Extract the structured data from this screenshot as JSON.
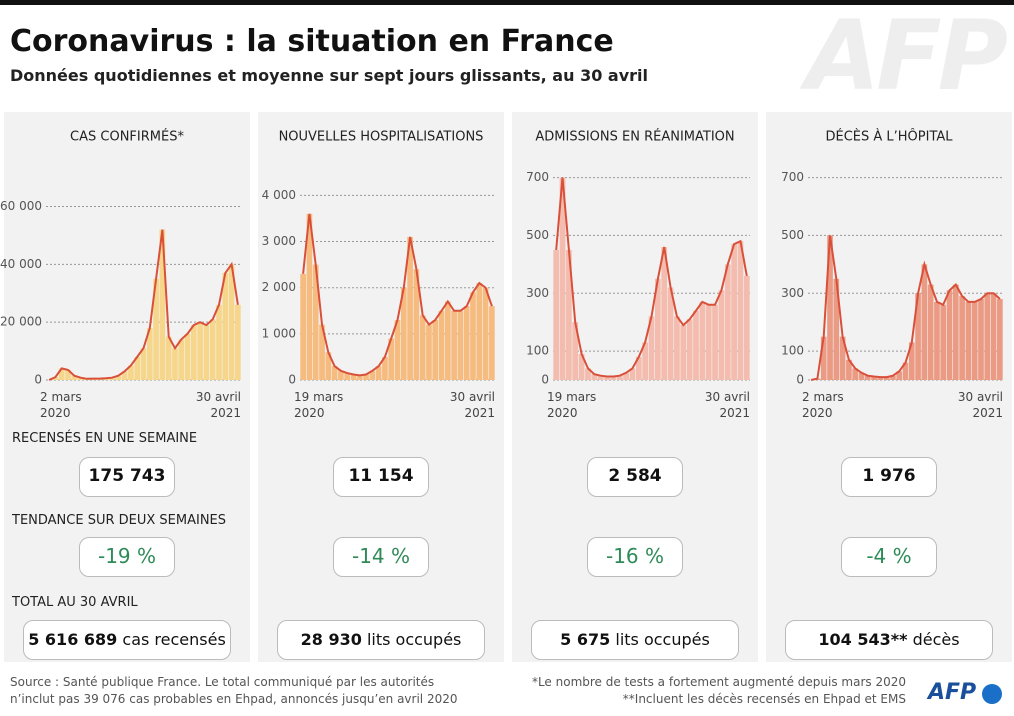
{
  "header": {
    "title": "Coronavirus : la situation en France",
    "subtitle": "Données quotidiennes et moyenne sur sept jours glissants, au 30 avril",
    "logo": "AFP"
  },
  "chart_data": [
    {
      "type": "bar",
      "title": "CAS CONFIRMÉS*",
      "color": "#f6d68a",
      "line_color": "#d9503a",
      "line": true,
      "categories": [
        "2 mars 2020",
        null,
        null,
        null,
        null,
        null,
        null,
        null,
        null,
        null,
        null,
        null,
        null,
        null,
        null,
        null,
        null,
        null,
        null,
        null,
        null,
        null,
        null,
        null,
        null,
        null,
        null,
        null,
        null,
        null,
        "30 avril 2021"
      ],
      "values": [
        0,
        1000,
        4000,
        3500,
        1500,
        800,
        400,
        500,
        500,
        600,
        800,
        1500,
        3000,
        5000,
        8000,
        11000,
        18000,
        35000,
        52000,
        15000,
        11000,
        14000,
        16000,
        19000,
        20000,
        19000,
        21000,
        26000,
        37000,
        40000,
        26000
      ],
      "ylim": [
        0,
        83000
      ],
      "yticks": [
        0,
        {
          "value": 20000,
          "label": "20 000"
        },
        {
          "value": 40000,
          "label": "40 000"
        },
        {
          "value": 60000,
          "label": "60 000"
        }
      ]
    },
    {
      "type": "bar",
      "title": "NOUVELLES HOSPITALISATIONS",
      "color": "#f6bb7e",
      "line_color": "#d9503a",
      "line": true,
      "categories": [
        "19 mars 2020",
        null,
        null,
        null,
        null,
        null,
        null,
        null,
        null,
        null,
        null,
        null,
        null,
        null,
        null,
        null,
        null,
        null,
        null,
        null,
        null,
        null,
        null,
        null,
        null,
        null,
        null,
        null,
        null,
        null,
        "30 avril 2021"
      ],
      "values": [
        2300,
        3600,
        2500,
        1200,
        600,
        300,
        200,
        150,
        120,
        100,
        120,
        200,
        300,
        500,
        900,
        1300,
        2000,
        3100,
        2400,
        1400,
        1200,
        1300,
        1500,
        1700,
        1500,
        1500,
        1600,
        1900,
        2100,
        2000,
        1600
      ],
      "ylim": [
        0,
        5200
      ],
      "yticks": [
        0,
        {
          "value": 1000,
          "label": "1 000"
        },
        {
          "value": 2000,
          "label": "2 000"
        },
        {
          "value": 3000,
          "label": "3 000"
        },
        {
          "value": 4000,
          "label": "4 000"
        }
      ]
    },
    {
      "type": "bar",
      "title": "ADMISSIONS EN RÉANIMATION",
      "color": "#f3bcae",
      "line_color": "#d9503a",
      "line": true,
      "categories": [
        "19 mars 2020",
        null,
        null,
        null,
        null,
        null,
        null,
        null,
        null,
        null,
        null,
        null,
        null,
        null,
        null,
        null,
        null,
        null,
        null,
        null,
        null,
        null,
        null,
        null,
        null,
        null,
        null,
        null,
        null,
        null,
        "30 avril 2021"
      ],
      "values": [
        450,
        700,
        450,
        200,
        90,
        40,
        20,
        15,
        12,
        12,
        15,
        25,
        40,
        80,
        130,
        220,
        350,
        460,
        320,
        220,
        190,
        210,
        240,
        270,
        260,
        260,
        310,
        400,
        470,
        480,
        360
      ],
      "ylim": [
        0,
        830
      ],
      "yticks": [
        0,
        100,
        300,
        500,
        700
      ]
    },
    {
      "type": "bar",
      "title": "DÉCÈS À L’HÔPITAL",
      "color": "#eb9a84",
      "line_color": "#d9503a",
      "line": true,
      "categories": [
        "2 mars 2020",
        null,
        null,
        null,
        null,
        null,
        null,
        null,
        null,
        null,
        null,
        null,
        null,
        null,
        null,
        null,
        null,
        null,
        null,
        null,
        null,
        null,
        null,
        null,
        null,
        null,
        null,
        null,
        null,
        null,
        "30 avril 2021"
      ],
      "values": [
        0,
        5,
        150,
        500,
        350,
        150,
        70,
        40,
        25,
        15,
        12,
        10,
        10,
        15,
        30,
        60,
        130,
        300,
        400,
        330,
        270,
        260,
        310,
        330,
        290,
        270,
        270,
        280,
        300,
        300,
        280
      ],
      "ylim": [
        0,
        830
      ],
      "yticks": [
        0,
        100,
        300,
        500,
        700
      ]
    }
  ],
  "stats": {
    "week_title": "RECENSÉS EN UNE SEMAINE",
    "trend_title": "TENDANCE SUR DEUX SEMAINES",
    "total_title": "TOTAL AU 30 AVRIL",
    "items": [
      {
        "week": "175 743",
        "trend": "-19 %",
        "total": "5 616 689",
        "unit": "cas recensés"
      },
      {
        "week": "11 154",
        "trend": "-14 %",
        "total": "28 930",
        "unit": "lits occupés"
      },
      {
        "week": "2 584",
        "trend": "-16 %",
        "total": "5 675",
        "unit": "lits occupés"
      },
      {
        "week": "1 976",
        "trend": "-4 %",
        "total": "104 543**",
        "unit": "décès"
      }
    ]
  },
  "footer": {
    "source": [
      "Source : Santé publique France. Le total communiqué par les autorités",
      "n’inclut pas 39 076 cas probables en Ehpad, annoncés jusqu’en avril 2020"
    ],
    "notes": [
      "*Le nombre de tests a fortement augmenté depuis mars 2020",
      "**Incluent les décès recensés en Ehpad et EMS"
    ],
    "logo": "AFP"
  }
}
